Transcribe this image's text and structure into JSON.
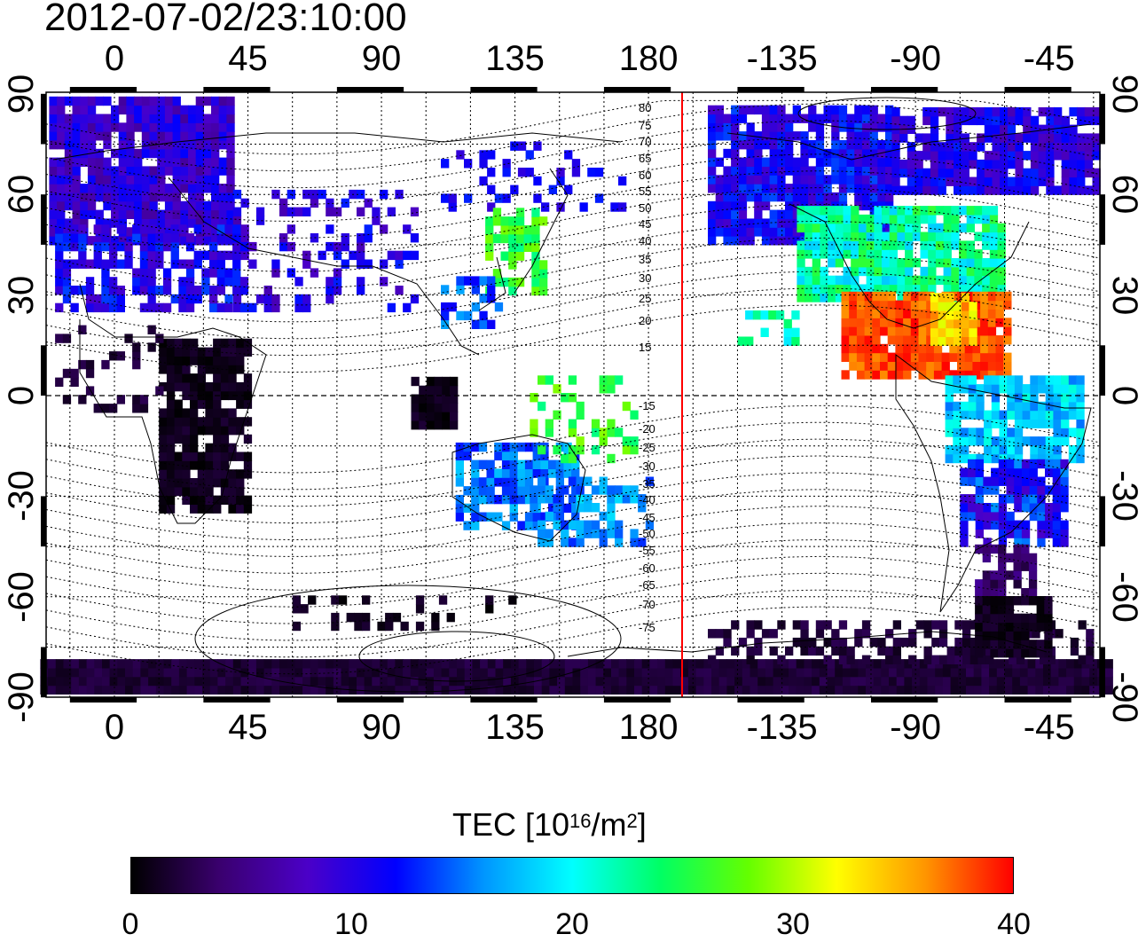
{
  "title": "2012-07-02/23:10:00",
  "x_ticks_top": [
    "0",
    "45",
    "90",
    "135",
    "180",
    "-135",
    "-90",
    "-45"
  ],
  "x_ticks_bottom": [
    "0",
    "45",
    "90",
    "135",
    "180",
    "-135",
    "-90",
    "-45"
  ],
  "y_ticks_left": [
    "90",
    "60",
    "30",
    "0",
    "-30",
    "-60",
    "-90"
  ],
  "y_ticks_right": [
    "90",
    "60",
    "30",
    "0",
    "-30",
    "-60",
    "-90"
  ],
  "colorbar": {
    "label_main": "TEC  [10",
    "label_exp1": "16",
    "label_mid": "/m",
    "label_exp2": "2",
    "label_end": "]",
    "min": 0,
    "max": 40,
    "ticks": [
      "0",
      "10",
      "20",
      "30",
      "40"
    ],
    "colors": [
      "#000000",
      "#3a006e",
      "#4b00c8",
      "#0000ff",
      "#0096ff",
      "#00ffff",
      "#00ff64",
      "#64ff00",
      "#ffff00",
      "#ff9600",
      "#ff0000"
    ]
  },
  "magnetic_latitude_labels": [
    "80",
    "75",
    "70",
    "65",
    "60",
    "55",
    "50",
    "45",
    "40",
    "35",
    "30",
    "25",
    "20",
    "15",
    "-15",
    "-20",
    "-25",
    "-30",
    "-35",
    "-40",
    "-45",
    "-50",
    "-55",
    "-60",
    "-65",
    "-70",
    "-75"
  ],
  "terminator_longitude": 192,
  "terminator_color": "#ff0000",
  "regions": [
    {
      "name": "northern-europe-asia",
      "tec": 9
    },
    {
      "name": "north-america-high",
      "tec": 12
    },
    {
      "name": "north-america-mid",
      "tec": 24
    },
    {
      "name": "gulf-caribbean",
      "tec": 39
    },
    {
      "name": "south-america-north",
      "tec": 18
    },
    {
      "name": "south-america-south",
      "tec": 10
    },
    {
      "name": "africa",
      "tec": 1
    },
    {
      "name": "southeast-asia",
      "tec": 1
    },
    {
      "name": "japan",
      "tec": 26
    },
    {
      "name": "australia",
      "tec": 15
    },
    {
      "name": "antarctica",
      "tec": 2
    }
  ]
}
